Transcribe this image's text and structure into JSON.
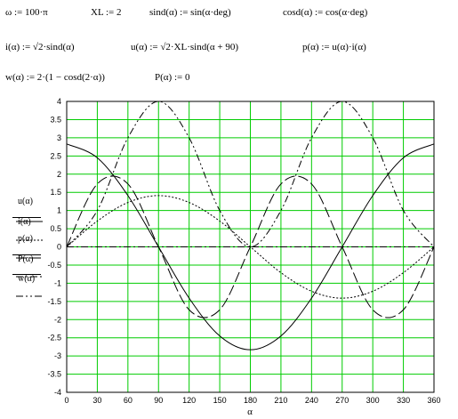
{
  "definitions": {
    "row1": [
      "ω := 100·π",
      "XL := 2",
      "sind(α) := sin(α·deg)",
      "cosd(α) := cos(α·deg)"
    ],
    "row2": [
      "i(α) := √2·sind(α)",
      "u(α) := √2·XL·sind(α + 90)",
      "p(α) := u(α)·i(α)"
    ],
    "row3": [
      "w(α) := 2·(1 − cosd(2·α))",
      "P(α) := 0"
    ]
  },
  "legend_labels": {
    "u": "u(α)",
    "i": "i(α)",
    "p": "p(α)",
    "P": "P(α)",
    "w": "w(α)"
  },
  "chart_data": {
    "type": "line",
    "xlabel": "α",
    "ylabel": "",
    "xlim": [
      0,
      360
    ],
    "ylim": [
      -4,
      4
    ],
    "grid": true,
    "x_ticks": [
      0,
      30,
      60,
      90,
      120,
      150,
      180,
      210,
      240,
      270,
      300,
      330,
      360
    ],
    "y_ticks": [
      -4,
      -3.5,
      -3,
      -2.5,
      -2,
      -1.5,
      -1,
      -0.5,
      0,
      0.5,
      1,
      1.5,
      2,
      2.5,
      3,
      3.5,
      4
    ],
    "x_tick_labels": [
      "0",
      "30",
      "60",
      "90",
      "120",
      "150",
      "180",
      "210",
      "240",
      "270",
      "300",
      "330",
      "360"
    ],
    "y_tick_labels": [
      "-4",
      "-3.5",
      "-3",
      "-2.5",
      "-2",
      "-1.5",
      "-1",
      "-0.5",
      "0",
      "0.5",
      "1",
      "1.5",
      "2",
      "2.5",
      "3",
      "3.5",
      "4"
    ],
    "x": [
      0,
      30,
      60,
      90,
      120,
      150,
      180,
      210,
      240,
      270,
      300,
      330,
      360
    ],
    "series": [
      {
        "name": "u(α)",
        "style": "solid",
        "color": "#000000",
        "values": [
          2.83,
          2.45,
          1.41,
          0,
          -1.41,
          -2.45,
          -2.83,
          -2.45,
          -1.41,
          0,
          1.41,
          2.45,
          2.83
        ]
      },
      {
        "name": "i(α)",
        "style": "dotted",
        "color": "#000000",
        "values": [
          0,
          0.71,
          1.22,
          1.41,
          1.22,
          0.71,
          0,
          -0.71,
          -1.22,
          -1.41,
          -1.22,
          -0.71,
          0
        ]
      },
      {
        "name": "p(α)",
        "style": "long-dash",
        "color": "#000000",
        "values": [
          0,
          1.73,
          1.73,
          0,
          -1.73,
          -1.73,
          0,
          1.73,
          1.73,
          0,
          -1.73,
          -1.73,
          0
        ]
      },
      {
        "name": "P(α)",
        "style": "dash-dot",
        "color": "#000000",
        "values": [
          0,
          0,
          0,
          0,
          0,
          0,
          0,
          0,
          0,
          0,
          0,
          0,
          0
        ]
      },
      {
        "name": "w(α)",
        "style": "dash-dot-dot",
        "color": "#000000",
        "values": [
          0,
          1,
          3,
          4,
          3,
          1,
          0,
          1,
          3,
          4,
          3,
          1,
          0
        ]
      }
    ],
    "grid_color": "#00cc00"
  }
}
